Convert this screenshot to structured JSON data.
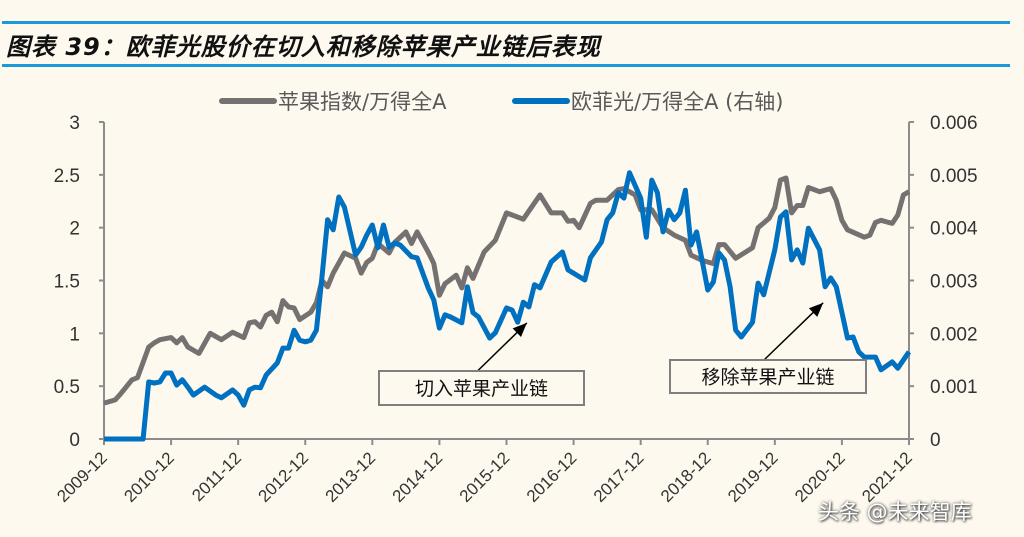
{
  "title": "图表 39：欧菲光股价在切入和移除苹果产业链后表现",
  "watermark": "头条 @未来智库",
  "chart_data": {
    "type": "line",
    "title": "",
    "xlabel": "",
    "ylabel": "",
    "legend_position": "top",
    "grid": false,
    "x_ticks": [
      "2009-12",
      "2010-12",
      "2011-12",
      "2012-12",
      "2013-12",
      "2014-12",
      "2015-12",
      "2016-12",
      "2017-12",
      "2018-12",
      "2019-12",
      "2020-12",
      "2021-12"
    ],
    "y_left": {
      "ticks": [
        "0",
        "0.5",
        "1",
        "1.5",
        "2",
        "2.5",
        "3"
      ],
      "range": [
        0,
        3
      ]
    },
    "y_right": {
      "ticks": [
        "0",
        "0.001",
        "0.002",
        "0.003",
        "0.004",
        "0.005",
        "0.006"
      ],
      "range": [
        0,
        0.006
      ]
    },
    "series": [
      {
        "name": "苹果指数/万得全A",
        "axis": "left",
        "color": "#767171",
        "points": [
          [
            "2009-12",
            0.34
          ],
          [
            "2010-02",
            0.37
          ],
          [
            "2010-03",
            0.43
          ],
          [
            "2010-05",
            0.56
          ],
          [
            "2010-06",
            0.58
          ],
          [
            "2010-08",
            0.87
          ],
          [
            "2010-09",
            0.91
          ],
          [
            "2010-10",
            0.94
          ],
          [
            "2010-12",
            0.96
          ],
          [
            "2011-01",
            0.91
          ],
          [
            "2011-02",
            0.96
          ],
          [
            "2011-03",
            0.87
          ],
          [
            "2011-05",
            0.81
          ],
          [
            "2011-07",
            1.0
          ],
          [
            "2011-09",
            0.94
          ],
          [
            "2011-11",
            1.01
          ],
          [
            "2012-01",
            0.96
          ],
          [
            "2012-02",
            1.1
          ],
          [
            "2012-03",
            1.11
          ],
          [
            "2012-04",
            1.06
          ],
          [
            "2012-05",
            1.17
          ],
          [
            "2012-06",
            1.2
          ],
          [
            "2012-07",
            1.11
          ],
          [
            "2012-08",
            1.31
          ],
          [
            "2012-09",
            1.25
          ],
          [
            "2012-10",
            1.24
          ],
          [
            "2012-11",
            1.13
          ],
          [
            "2013-01",
            1.2
          ],
          [
            "2013-02",
            1.29
          ],
          [
            "2013-03",
            1.5
          ],
          [
            "2013-04",
            1.44
          ],
          [
            "2013-05",
            1.57
          ],
          [
            "2013-07",
            1.76
          ],
          [
            "2013-09",
            1.71
          ],
          [
            "2013-10",
            1.57
          ],
          [
            "2013-11",
            1.67
          ],
          [
            "2013-12",
            1.71
          ],
          [
            "2014-01",
            1.85
          ],
          [
            "2014-03",
            1.76
          ],
          [
            "2014-04",
            1.86
          ],
          [
            "2014-06",
            1.96
          ],
          [
            "2014-07",
            1.85
          ],
          [
            "2014-08",
            1.96
          ],
          [
            "2014-10",
            1.77
          ],
          [
            "2014-11",
            1.66
          ],
          [
            "2014-12",
            1.36
          ],
          [
            "2015-01",
            1.47
          ],
          [
            "2015-03",
            1.55
          ],
          [
            "2015-04",
            1.43
          ],
          [
            "2015-05",
            1.62
          ],
          [
            "2015-06",
            1.52
          ],
          [
            "2015-08",
            1.77
          ],
          [
            "2015-10",
            1.88
          ],
          [
            "2015-12",
            2.14
          ],
          [
            "2016-01",
            2.12
          ],
          [
            "2016-03",
            2.08
          ],
          [
            "2016-06",
            2.31
          ],
          [
            "2016-08",
            2.14
          ],
          [
            "2016-10",
            2.14
          ],
          [
            "2016-11",
            2.06
          ],
          [
            "2016-12",
            2.07
          ],
          [
            "2017-01",
            2.0
          ],
          [
            "2017-03",
            2.23
          ],
          [
            "2017-04",
            2.26
          ],
          [
            "2017-06",
            2.26
          ],
          [
            "2017-08",
            2.36
          ],
          [
            "2017-09",
            2.37
          ],
          [
            "2017-11",
            2.31
          ],
          [
            "2017-12",
            2.17
          ],
          [
            "2018-02",
            2.17
          ],
          [
            "2018-04",
            2.0
          ],
          [
            "2018-06",
            1.93
          ],
          [
            "2018-08",
            1.88
          ],
          [
            "2018-09",
            1.74
          ],
          [
            "2018-11",
            1.69
          ],
          [
            "2019-01",
            1.66
          ],
          [
            "2019-02",
            1.84
          ],
          [
            "2019-03",
            1.84
          ],
          [
            "2019-05",
            1.71
          ],
          [
            "2019-08",
            1.81
          ],
          [
            "2019-09",
            2.0
          ],
          [
            "2019-11",
            2.09
          ],
          [
            "2019-12",
            2.19
          ],
          [
            "2020-01",
            2.45
          ],
          [
            "2020-02",
            2.47
          ],
          [
            "2020-03",
            2.14
          ],
          [
            "2020-04",
            2.21
          ],
          [
            "2020-05",
            2.21
          ],
          [
            "2020-06",
            2.38
          ],
          [
            "2020-08",
            2.34
          ],
          [
            "2020-10",
            2.37
          ],
          [
            "2020-11",
            2.26
          ],
          [
            "2020-12",
            2.07
          ],
          [
            "2021-01",
            1.98
          ],
          [
            "2021-04",
            1.91
          ],
          [
            "2021-05",
            1.93
          ],
          [
            "2021-06",
            2.05
          ],
          [
            "2021-07",
            2.07
          ],
          [
            "2021-09",
            2.04
          ],
          [
            "2021-10",
            2.12
          ],
          [
            "2021-11",
            2.31
          ],
          [
            "2021-12",
            2.34
          ]
        ]
      },
      {
        "name": "欧菲光/万得全A (右轴)",
        "axis": "right",
        "color": "#0070c0",
        "points": [
          [
            "2009-12",
            0
          ],
          [
            "2010-07",
            0
          ],
          [
            "2010-08",
            0.00108
          ],
          [
            "2010-09",
            0.00106
          ],
          [
            "2010-10",
            0.00108
          ],
          [
            "2010-11",
            0.00125
          ],
          [
            "2010-12",
            0.00125
          ],
          [
            "2011-01",
            0.00102
          ],
          [
            "2011-02",
            0.00112
          ],
          [
            "2011-03",
            0.00098
          ],
          [
            "2011-04",
            0.00083
          ],
          [
            "2011-06",
            0.00098
          ],
          [
            "2011-08",
            0.00083
          ],
          [
            "2011-09",
            0.00078
          ],
          [
            "2011-11",
            0.00093
          ],
          [
            "2011-12",
            0.00083
          ],
          [
            "2012-01",
            0.00064
          ],
          [
            "2012-02",
            0.00093
          ],
          [
            "2012-03",
            0.00098
          ],
          [
            "2012-04",
            0.00097
          ],
          [
            "2012-05",
            0.00121
          ],
          [
            "2012-07",
            0.00144
          ],
          [
            "2012-08",
            0.00172
          ],
          [
            "2012-09",
            0.00172
          ],
          [
            "2012-10",
            0.00206
          ],
          [
            "2012-11",
            0.00187
          ],
          [
            "2012-12",
            0.00184
          ],
          [
            "2013-01",
            0.00187
          ],
          [
            "2013-02",
            0.00206
          ],
          [
            "2013-03",
            0.00307
          ],
          [
            "2013-04",
            0.00415
          ],
          [
            "2013-05",
            0.00396
          ],
          [
            "2013-06",
            0.00458
          ],
          [
            "2013-07",
            0.00439
          ],
          [
            "2013-09",
            0.00348
          ],
          [
            "2013-10",
            0.00363
          ],
          [
            "2013-11",
            0.00386
          ],
          [
            "2013-12",
            0.00405
          ],
          [
            "2014-01",
            0.00362
          ],
          [
            "2014-02",
            0.00405
          ],
          [
            "2014-03",
            0.00363
          ],
          [
            "2014-04",
            0.00371
          ],
          [
            "2014-05",
            0.00367
          ],
          [
            "2014-07",
            0.00345
          ],
          [
            "2014-08",
            0.00343
          ],
          [
            "2014-10",
            0.00286
          ],
          [
            "2014-11",
            0.00263
          ],
          [
            "2014-12",
            0.0021
          ],
          [
            "2015-01",
            0.00235
          ],
          [
            "2015-02",
            0.00231
          ],
          [
            "2015-04",
            0.0022
          ],
          [
            "2015-05",
            0.00288
          ],
          [
            "2015-06",
            0.00239
          ],
          [
            "2015-07",
            0.00231
          ],
          [
            "2015-09",
            0.00191
          ],
          [
            "2015-10",
            0.00201
          ],
          [
            "2015-12",
            0.00248
          ],
          [
            "2016-01",
            0.00244
          ],
          [
            "2016-02",
            0.00221
          ],
          [
            "2016-03",
            0.00259
          ],
          [
            "2016-04",
            0.0025
          ],
          [
            "2016-05",
            0.00292
          ],
          [
            "2016-06",
            0.00286
          ],
          [
            "2016-08",
            0.00335
          ],
          [
            "2016-10",
            0.00354
          ],
          [
            "2016-11",
            0.0032
          ],
          [
            "2017-02",
            0.00301
          ],
          [
            "2017-03",
            0.00343
          ],
          [
            "2017-05",
            0.00373
          ],
          [
            "2017-06",
            0.00415
          ],
          [
            "2017-07",
            0.00428
          ],
          [
            "2017-08",
            0.00466
          ],
          [
            "2017-09",
            0.00456
          ],
          [
            "2017-10",
            0.00504
          ],
          [
            "2017-12",
            0.00456
          ],
          [
            "2018-01",
            0.00382
          ],
          [
            "2018-02",
            0.0049
          ],
          [
            "2018-03",
            0.00466
          ],
          [
            "2018-04",
            0.00392
          ],
          [
            "2018-05",
            0.00433
          ],
          [
            "2018-06",
            0.00415
          ],
          [
            "2018-07",
            0.00428
          ],
          [
            "2018-08",
            0.00471
          ],
          [
            "2018-09",
            0.00367
          ],
          [
            "2018-10",
            0.00392
          ],
          [
            "2018-12",
            0.00282
          ],
          [
            "2019-01",
            0.00297
          ],
          [
            "2019-02",
            0.00352
          ],
          [
            "2019-03",
            0.00339
          ],
          [
            "2019-04",
            0.00288
          ],
          [
            "2019-05",
            0.00206
          ],
          [
            "2019-06",
            0.00193
          ],
          [
            "2019-08",
            0.00221
          ],
          [
            "2019-09",
            0.00295
          ],
          [
            "2019-10",
            0.00273
          ],
          [
            "2019-12",
            0.00358
          ],
          [
            "2020-01",
            0.0042
          ],
          [
            "2020-02",
            0.0043
          ],
          [
            "2020-03",
            0.00339
          ],
          [
            "2020-04",
            0.00358
          ],
          [
            "2020-05",
            0.00333
          ],
          [
            "2020-06",
            0.00399
          ],
          [
            "2020-08",
            0.00358
          ],
          [
            "2020-09",
            0.00288
          ],
          [
            "2020-10",
            0.00305
          ],
          [
            "2020-11",
            0.00288
          ],
          [
            "2021-01",
            0.00191
          ],
          [
            "2021-02",
            0.00193
          ],
          [
            "2021-03",
            0.00165
          ],
          [
            "2021-04",
            0.00155
          ],
          [
            "2021-06",
            0.00155
          ],
          [
            "2021-07",
            0.00131
          ],
          [
            "2021-09",
            0.00146
          ],
          [
            "2021-10",
            0.00134
          ],
          [
            "2021-12",
            0.00165
          ]
        ]
      }
    ],
    "annotations": [
      {
        "text": "切入苹果产业链",
        "target": [
          "2016-04",
          0.0025
        ]
      },
      {
        "text": "移除苹果产业链",
        "target": [
          "2020-09",
          0.00288
        ]
      }
    ]
  }
}
